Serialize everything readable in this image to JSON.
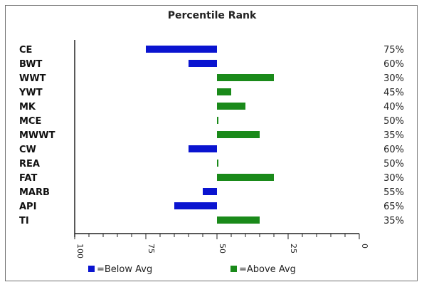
{
  "chart_data": {
    "type": "bar",
    "title": "Percentile Rank",
    "categories": [
      "CE",
      "BWT",
      "WWT",
      "YWT",
      "MK",
      "MCE",
      "MWWT",
      "CW",
      "REA",
      "FAT",
      "MARB",
      "API",
      "TI"
    ],
    "values": [
      75,
      60,
      30,
      45,
      40,
      50,
      35,
      60,
      50,
      30,
      55,
      65,
      35
    ],
    "percent_labels": [
      "75%",
      "60%",
      "30%",
      "45%",
      "40%",
      "50%",
      "35%",
      "60%",
      "50%",
      "30%",
      "55%",
      "65%",
      "35%"
    ],
    "xlim": [
      100,
      0
    ],
    "reference_value": 50,
    "x_ticks": [
      "100",
      "75",
      "50",
      "25",
      "0"
    ],
    "x_tick_values": [
      100,
      75,
      50,
      25,
      0
    ],
    "legend": [
      {
        "label": "=Below Avg",
        "color": "#0a14d0"
      },
      {
        "label": "=Above Avg",
        "color": "#1a8a1a"
      }
    ],
    "colors": {
      "below": "#0a14d0",
      "above": "#1a8a1a"
    },
    "grid": false,
    "legend_position": "bottom"
  }
}
